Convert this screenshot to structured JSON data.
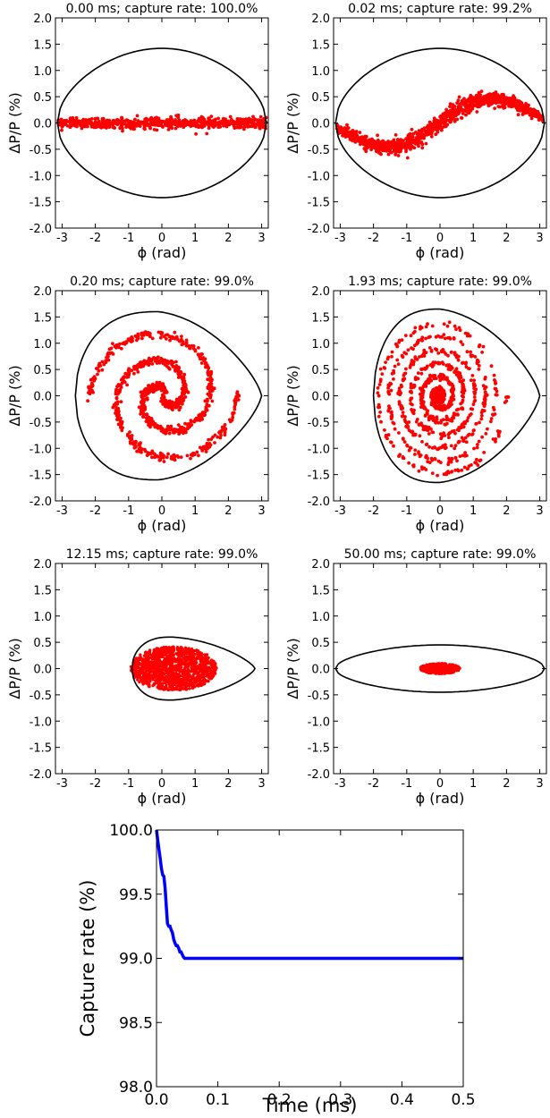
{
  "chart_data": [
    {
      "type": "scatter",
      "title": "0.00 ms; capture rate: 100.0%",
      "time_ms": 0.0,
      "capture_rate": 100.0,
      "xlabel": "ϕ (rad)",
      "ylabel": "ΔP/P (%)",
      "xlim": [
        -3.2,
        3.2
      ],
      "ylim": [
        -2.0,
        2.0
      ],
      "xticks": [
        "-3",
        "-2",
        "-1",
        "0",
        "1",
        "2",
        "3"
      ],
      "yticks": [
        "-2.0",
        "-1.5",
        "-1.0",
        "-0.5",
        "0.0",
        "0.5",
        "1.0",
        "1.5",
        "2.0"
      ],
      "separatrix": {
        "shape": "symmetric",
        "phi_min": -3.14,
        "phi_max": 3.14,
        "height": 1.42
      },
      "particles": {
        "distribution": "band",
        "phi_range": [
          -3.14,
          3.14
        ],
        "dp_spread": 0.05,
        "count": 700,
        "color": "#ff0000"
      }
    },
    {
      "type": "scatter",
      "title": "0.02 ms; capture rate: 99.2%",
      "time_ms": 0.02,
      "capture_rate": 99.2,
      "xlabel": "ϕ (rad)",
      "ylabel": "ΔP/P (%)",
      "xlim": [
        -3.2,
        3.2
      ],
      "ylim": [
        -2.0,
        2.0
      ],
      "xticks": [
        "-3",
        "-2",
        "-1",
        "0",
        "1",
        "2",
        "3"
      ],
      "yticks": [
        "-2.0",
        "-1.5",
        "-1.0",
        "-0.5",
        "0.0",
        "0.5",
        "1.0",
        "1.5",
        "2.0"
      ],
      "separatrix": {
        "shape": "symmetric",
        "phi_min": -3.14,
        "phi_max": 3.14,
        "height": 1.42
      },
      "particles": {
        "distribution": "s-curve",
        "amplitude": 0.52,
        "phase_shift": 1.25,
        "dp_spread": 0.07,
        "count": 1100,
        "color": "#ff0000"
      }
    },
    {
      "type": "scatter",
      "title": "0.20 ms; capture rate: 99.0%",
      "time_ms": 0.2,
      "capture_rate": 99.0,
      "xlabel": "ϕ (rad)",
      "ylabel": "ΔP/P (%)",
      "xlim": [
        -3.2,
        3.2
      ],
      "ylim": [
        -2.0,
        2.0
      ],
      "xticks": [
        "-3",
        "-2",
        "-1",
        "0",
        "1",
        "2",
        "3"
      ],
      "yticks": [
        "-2.0",
        "-1.5",
        "-1.0",
        "-0.5",
        "0.0",
        "0.5",
        "1.0",
        "1.5",
        "2.0"
      ],
      "separatrix": {
        "shape": "bucket",
        "phi_left": -2.6,
        "phi_right": 3.0,
        "center": -0.1,
        "height": 1.6
      },
      "particles": {
        "distribution": "spiral",
        "turns": 1.3,
        "r_max": 1.35,
        "count": 1000,
        "color": "#ff0000"
      }
    },
    {
      "type": "scatter",
      "title": "1.93 ms; capture rate: 99.0%",
      "time_ms": 1.93,
      "capture_rate": 99.0,
      "xlabel": "ϕ (rad)",
      "ylabel": "ΔP/P (%)",
      "xlim": [
        -3.2,
        3.2
      ],
      "ylim": [
        -2.0,
        2.0
      ],
      "xticks": [
        "-3",
        "-2",
        "-1",
        "0",
        "1",
        "2",
        "3"
      ],
      "yticks": [
        "-2.0",
        "-1.5",
        "-1.0",
        "-0.5",
        "0.0",
        "0.5",
        "1.0",
        "1.5",
        "2.0"
      ],
      "separatrix": {
        "shape": "bucket",
        "phi_left": -2.0,
        "phi_right": 3.0,
        "center": 0.0,
        "height": 1.65
      },
      "particles": {
        "distribution": "tight-spiral",
        "turns": 6,
        "r_max": 1.5,
        "count": 900,
        "color": "#ff0000"
      }
    },
    {
      "type": "scatter",
      "title": "12.15 ms; capture rate: 99.0%",
      "time_ms": 12.15,
      "capture_rate": 99.0,
      "xlabel": "ϕ (rad)",
      "ylabel": "ΔP/P (%)",
      "xlim": [
        -3.2,
        3.2
      ],
      "ylim": [
        -2.0,
        2.0
      ],
      "xticks": [
        "-3",
        "-2",
        "-1",
        "0",
        "1",
        "2",
        "3"
      ],
      "yticks": [
        "-2.0",
        "-1.5",
        "-1.0",
        "-0.5",
        "0.0",
        "0.5",
        "1.0",
        "1.5",
        "2.0"
      ],
      "separatrix": {
        "shape": "bucket",
        "phi_left": -0.9,
        "phi_right": 2.8,
        "center": 0.3,
        "height": 0.6
      },
      "particles": {
        "distribution": "ellipse",
        "center": [
          0.35,
          0.0
        ],
        "radii": [
          1.3,
          0.42
        ],
        "count": 1400,
        "color": "#ff0000"
      }
    },
    {
      "type": "scatter",
      "title": "50.00 ms; capture rate: 99.0%",
      "time_ms": 50.0,
      "capture_rate": 99.0,
      "xlabel": "ϕ (rad)",
      "ylabel": "ΔP/P (%)",
      "xlim": [
        -3.2,
        3.2
      ],
      "ylim": [
        -2.0,
        2.0
      ],
      "xticks": [
        "-3",
        "-2",
        "-1",
        "0",
        "1",
        "2",
        "3"
      ],
      "yticks": [
        "-2.0",
        "-1.5",
        "-1.0",
        "-0.5",
        "0.0",
        "0.5",
        "1.0",
        "1.5",
        "2.0"
      ],
      "separatrix": {
        "shape": "symmetric",
        "phi_min": -3.14,
        "phi_max": 3.14,
        "height": 0.45
      },
      "particles": {
        "distribution": "ellipse",
        "center": [
          0.0,
          0.0
        ],
        "radii": [
          0.6,
          0.1
        ],
        "count": 600,
        "color": "#ff0000"
      }
    },
    {
      "type": "line",
      "title": "",
      "xlabel": "Time (ms)",
      "ylabel": "Capture rate (%)",
      "xlim": [
        0.0,
        0.5
      ],
      "ylim": [
        98.0,
        100.0
      ],
      "xticks": [
        "0.0",
        "0.1",
        "0.2",
        "0.3",
        "0.4",
        "0.5"
      ],
      "yticks": [
        "98.0",
        "98.5",
        "99.0",
        "99.5",
        "100.0"
      ],
      "series": [
        {
          "color": "#0000ff",
          "x": [
            0.0,
            0.002,
            0.004,
            0.006,
            0.008,
            0.01,
            0.012,
            0.014,
            0.016,
            0.018,
            0.02,
            0.022,
            0.024,
            0.026,
            0.028,
            0.03,
            0.032,
            0.034,
            0.036,
            0.038,
            0.04,
            0.042,
            0.044,
            0.046,
            0.048,
            0.05,
            0.052,
            0.1,
            0.2,
            0.3,
            0.4,
            0.5
          ],
          "y": [
            100.0,
            99.92,
            99.85,
            99.78,
            99.7,
            99.65,
            99.64,
            99.55,
            99.4,
            99.27,
            99.25,
            99.25,
            99.22,
            99.2,
            99.15,
            99.12,
            99.1,
            99.1,
            99.08,
            99.05,
            99.05,
            99.03,
            99.01,
            99.0,
            99.0,
            99.0,
            99.0,
            99.0,
            99.0,
            99.0,
            99.0,
            99.0
          ]
        }
      ]
    }
  ]
}
